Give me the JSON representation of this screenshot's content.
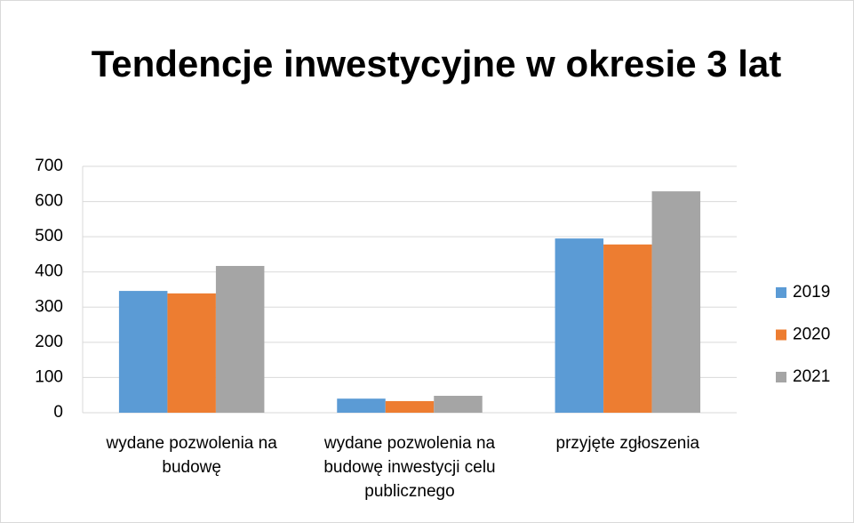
{
  "chart_data": {
    "type": "bar",
    "title": "Tendencje inwestycyjne w okresie 3 lat",
    "categories": [
      "wydane pozwolenia na budowę",
      "wydane pozwolenia na budowę inwestycji celu publicznego",
      "przyjęte zgłoszenia"
    ],
    "series": [
      {
        "name": "2019",
        "color": "#5b9bd5",
        "values": [
          346,
          40,
          495
        ]
      },
      {
        "name": "2020",
        "color": "#ed7d31",
        "values": [
          339,
          33,
          478
        ]
      },
      {
        "name": "2021",
        "color": "#a5a5a5",
        "values": [
          417,
          48,
          629
        ]
      }
    ],
    "ylim": [
      0,
      700
    ],
    "yticks": [
      0,
      100,
      200,
      300,
      400,
      500,
      600,
      700
    ],
    "grid": true,
    "legend": "right"
  }
}
